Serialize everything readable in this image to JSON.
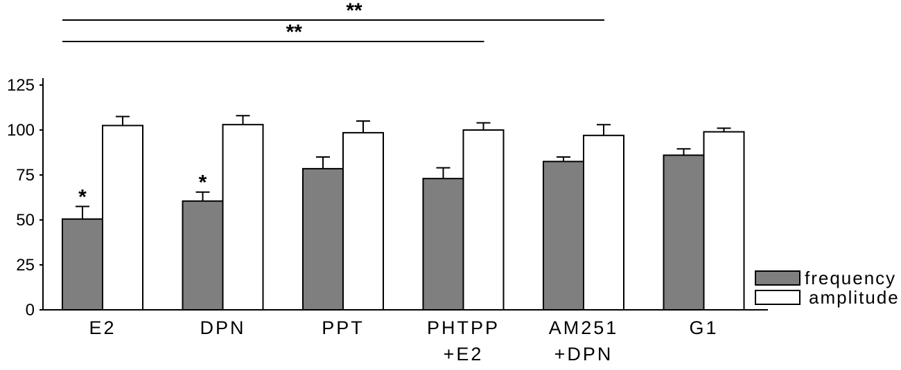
{
  "chart_data": {
    "type": "bar",
    "categories": [
      [
        "E2"
      ],
      [
        "DPN"
      ],
      [
        "PPT"
      ],
      [
        "PHTPP",
        "+E2"
      ],
      [
        "AM251",
        "+DPN"
      ],
      [
        "G1"
      ]
    ],
    "ylim": [
      0,
      125
    ],
    "yticks": [
      0,
      25,
      50,
      75,
      100,
      125
    ],
    "series": [
      {
        "name": "frequency",
        "color": "#7f7f7f",
        "values": [
          50.5,
          60.5,
          78.5,
          73,
          82.5,
          86
        ],
        "errors": [
          7,
          5,
          6.5,
          6,
          2.5,
          3.5
        ],
        "markers": [
          "*",
          "*",
          "",
          "",
          "",
          ""
        ]
      },
      {
        "name": "amplitude",
        "color": "#ffffff",
        "values": [
          102.5,
          103,
          98.5,
          100,
          97,
          99
        ],
        "errors": [
          5,
          5,
          6.5,
          4,
          6,
          2
        ],
        "markers": [
          "",
          "",
          "",
          "",
          "",
          ""
        ]
      }
    ],
    "significance": [
      {
        "from": "E2",
        "to": "AM251 +DPN",
        "label": "**"
      },
      {
        "from": "E2",
        "to": "PHTPP +E2",
        "label": "**"
      }
    ],
    "legend_position": "bottom-right"
  }
}
